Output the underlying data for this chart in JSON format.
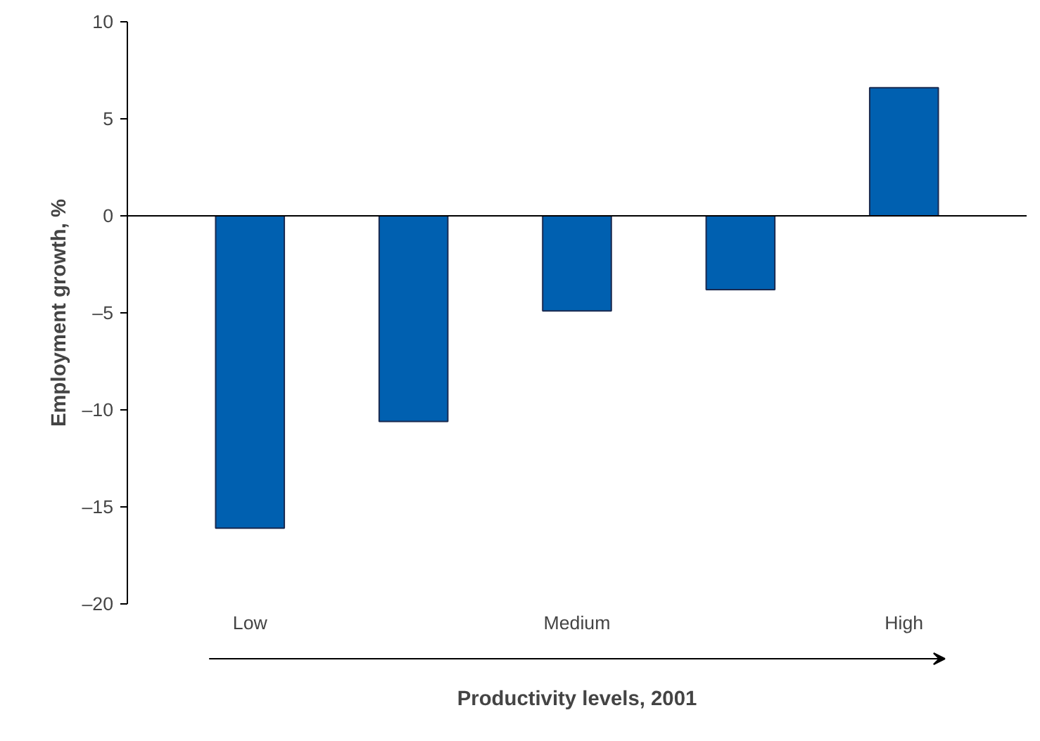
{
  "chart_data": {
    "type": "bar",
    "xlabel": "Productivity levels, 2001",
    "ylabel": "Employment growth, %",
    "categories": [
      "Low",
      null,
      "Medium",
      null,
      "High"
    ],
    "values": [
      -16.1,
      -10.6,
      -4.9,
      -3.8,
      6.6
    ],
    "color": "#0060b0",
    "ylim": [
      -20,
      10
    ],
    "yticks": [
      {
        "value": -20,
        "label": "–20"
      },
      {
        "value": -15,
        "label": "–15"
      },
      {
        "value": -10,
        "label": "–10"
      },
      {
        "value": -5,
        "label": "–5"
      },
      0,
      5,
      10
    ],
    "grid": false,
    "ref_lines": [
      {
        "axis": "y",
        "value": 0,
        "color": "#000000"
      }
    ]
  }
}
